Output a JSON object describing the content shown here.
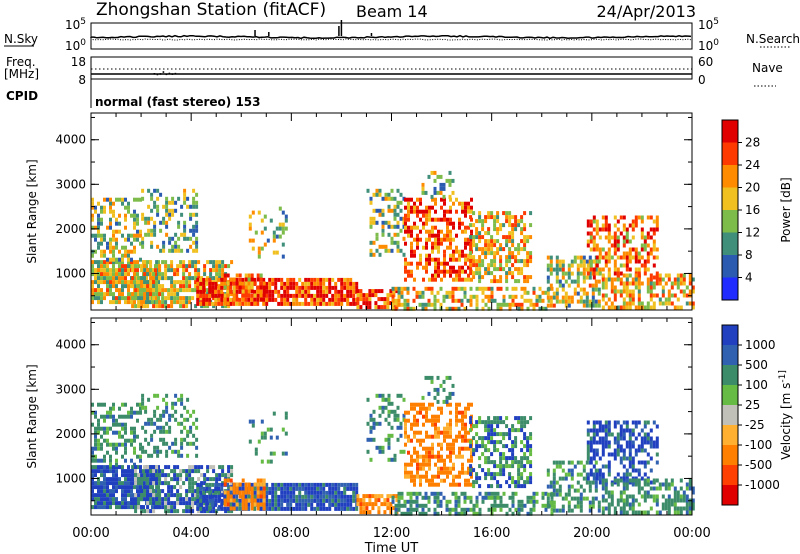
{
  "header": {
    "title": "Zhongshan Station (fitACF)",
    "beam": "Beam 14",
    "date": "24/Apr/2013"
  },
  "strips": {
    "nsky_label": "N.Sky",
    "nsearch_label": "N.Search",
    "left_top_ticks": [
      "10^5",
      "10^0"
    ],
    "right_top_ticks": [
      "10^5",
      "10^0"
    ],
    "freq_label_line1": "Freq.",
    "freq_label_line2": "[MHz]",
    "nave_label": "Nave",
    "freq_ticks": [
      "18",
      "8"
    ],
    "nave_ticks": [
      "60",
      "0"
    ],
    "cpid_label": "CPID",
    "cpid_text": "normal (fast stereo) 153"
  },
  "colors": {
    "power": [
      "#1f2bff",
      "#2a5bb0",
      "#3f8f7a",
      "#7dbb4a",
      "#f0c020",
      "#ff8c00",
      "#ff3a00",
      "#e00000"
    ],
    "velocity": [
      "#2040c0",
      "#3060b0",
      "#3c8c6a",
      "#66bb44",
      "#c0c0b8",
      "#ffb030",
      "#ff8000",
      "#ff4000",
      "#e00000"
    ]
  },
  "chart_data": [
    {
      "type": "heatmap",
      "name": "power-panel",
      "ylabel": "Slant Range [km]",
      "ylim": [
        180,
        4600
      ],
      "yticks": [
        1000,
        2000,
        3000,
        4000
      ],
      "colorbar_label": "Power [dB]",
      "colorbar_ticks": [
        "4",
        "8",
        "12",
        "16",
        "20",
        "24",
        "28"
      ],
      "scale": [
        0,
        30
      ]
    },
    {
      "type": "heatmap",
      "name": "velocity-panel",
      "ylabel": "Slant Range [km]",
      "ylim": [
        180,
        4600
      ],
      "yticks": [
        1000,
        2000,
        3000,
        4000
      ],
      "colorbar_label": "Velocity [m s^-1]",
      "colorbar_ticks": [
        "1000",
        "500",
        "100",
        "25",
        "-25",
        "-100",
        "-500",
        "-1000"
      ]
    }
  ],
  "xaxis": {
    "label": "Time UT",
    "ticks": [
      "00:00",
      "04:00",
      "08:00",
      "12:00",
      "16:00",
      "20:00",
      "00:00"
    ],
    "range_hours": [
      0,
      24
    ]
  }
}
